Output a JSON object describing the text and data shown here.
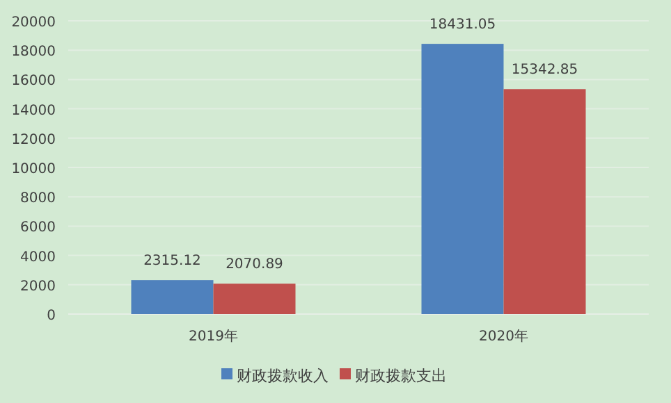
{
  "chart_data": {
    "type": "bar",
    "categories": [
      "2019年",
      "2020年"
    ],
    "series": [
      {
        "name": "财政拨款收入",
        "color": "#4f81bd",
        "values": [
          2315.12,
          18431.05
        ]
      },
      {
        "name": "财政拨款支出",
        "color": "#c0504d",
        "values": [
          2070.89,
          15342.85
        ]
      }
    ],
    "ylim": [
      0,
      20000
    ],
    "yticks": [
      0,
      2000,
      4000,
      6000,
      8000,
      10000,
      12000,
      14000,
      16000,
      18000,
      20000
    ],
    "grid": "y",
    "legend": "bottom",
    "data_labels": true
  }
}
